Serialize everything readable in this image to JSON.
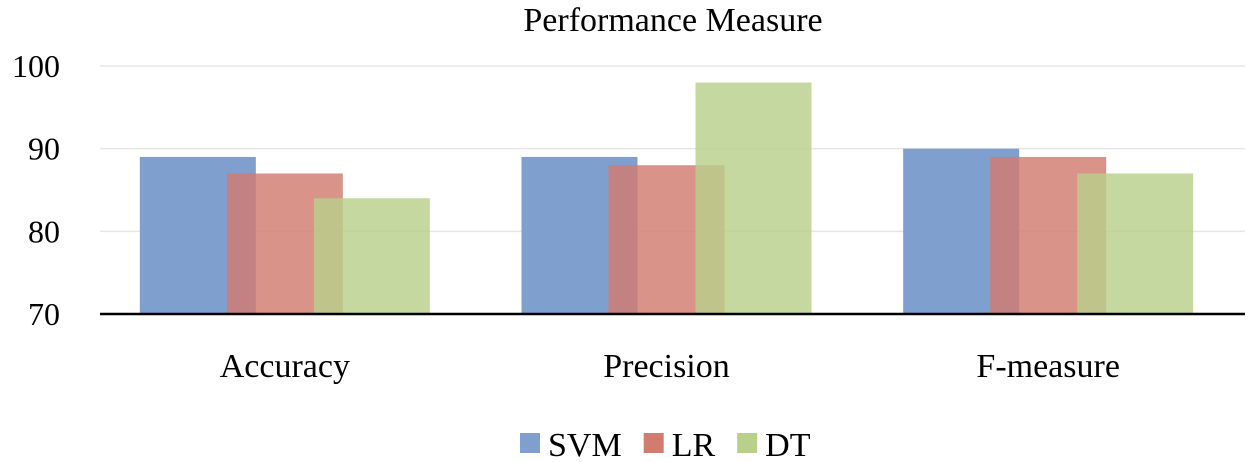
{
  "chart_data": {
    "type": "bar",
    "title": "Performance Measure",
    "xlabel": "",
    "ylabel": "",
    "categories": [
      "Accuracy",
      "Precision",
      "F-measure"
    ],
    "series": [
      {
        "name": "SVM",
        "values": [
          89,
          89,
          90
        ],
        "color": "#7f9fcf"
      },
      {
        "name": "LR",
        "values": [
          87,
          88,
          89
        ],
        "color": "#d27b6f"
      },
      {
        "name": "DT",
        "values": [
          84,
          98,
          87
        ],
        "color": "#b8d08a"
      }
    ],
    "ylim": [
      70,
      100
    ],
    "yticks": [
      "70",
      "80",
      "90",
      "100"
    ],
    "grid": true,
    "legend": "bottom",
    "bars_overlap": true
  }
}
